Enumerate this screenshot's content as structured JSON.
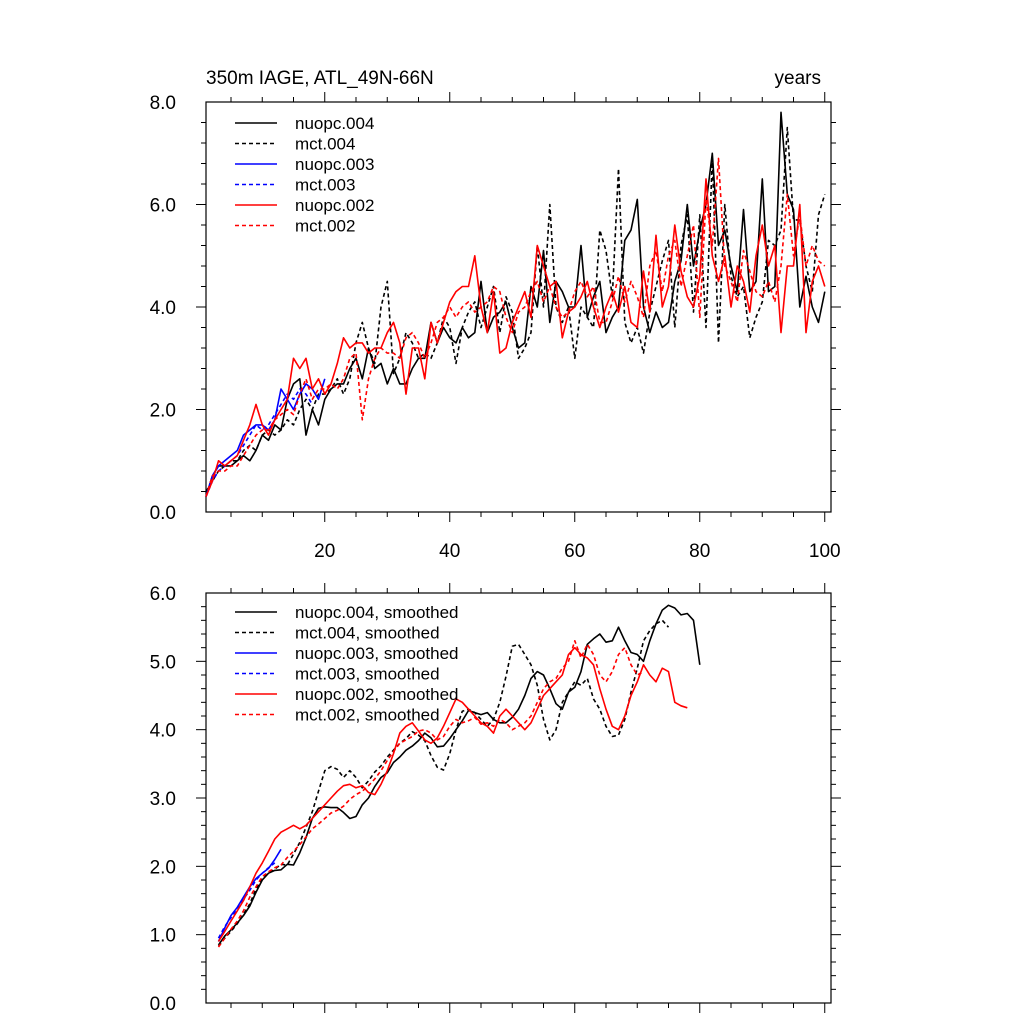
{
  "chart_data": [
    {
      "type": "line",
      "title": "350m IAGE, ATL_49N-66N",
      "right_title": "years",
      "xlim": [
        1,
        101
      ],
      "ylim": [
        0,
        8
      ],
      "x_tick_labels": [
        "20",
        "40",
        "60",
        "80",
        "100"
      ],
      "x_ticks": [
        20,
        40,
        60,
        80,
        100
      ],
      "y_tick_labels": [
        "0.0",
        "2.0",
        "4.0",
        "6.0",
        "8.0"
      ],
      "y_ticks": [
        0,
        2,
        4,
        6,
        8
      ],
      "legend_position": "top-left",
      "series": [
        {
          "name": "nuopc.004",
          "color": "#000000",
          "dash": "solid",
          "x_start": 1,
          "values": [
            0.3,
            0.7,
            0.9,
            0.9,
            0.9,
            1.0,
            1.1,
            1.0,
            1.2,
            1.5,
            1.4,
            1.7,
            1.6,
            2.2,
            2.5,
            2.6,
            1.5,
            2.0,
            1.7,
            2.2,
            2.4,
            2.5,
            2.5,
            2.8,
            3.0,
            2.6,
            3.2,
            2.8,
            2.9,
            2.5,
            2.8,
            2.5,
            2.5,
            2.8,
            3.0,
            3.0,
            3.7,
            3.3,
            3.6,
            3.4,
            3.3,
            3.6,
            3.4,
            3.5,
            4.5,
            3.5,
            3.8,
            3.9,
            4.1,
            3.6,
            3.2,
            3.3,
            4.4,
            4.0,
            5.1,
            3.7,
            4.5,
            4.3,
            4.0,
            4.0,
            5.2,
            3.8,
            4.2,
            4.5,
            3.5,
            3.8,
            4.0,
            5.3,
            5.5,
            6.1,
            4.0,
            3.5,
            3.9,
            3.6,
            3.7,
            4.5,
            4.9,
            6.0,
            4.8,
            5.5,
            6.0,
            7.0,
            5.2,
            5.5,
            4.8,
            4.3,
            5.9,
            4.3,
            4.5,
            6.5,
            4.3,
            4.4,
            7.8,
            6.2,
            5.9,
            4.0,
            4.6,
            4.0,
            3.7,
            4.3
          ]
        },
        {
          "name": "mct.004",
          "color": "#000000",
          "dash": "dashed",
          "x_start": 1,
          "values": [
            0.4,
            0.6,
            0.8,
            0.9,
            1.0,
            1.0,
            1.2,
            1.3,
            1.2,
            1.5,
            1.6,
            1.5,
            1.6,
            1.8,
            1.7,
            2.0,
            2.2,
            2.0,
            2.3,
            2.3,
            2.4,
            2.6,
            2.3,
            2.6,
            3.3,
            3.7,
            3.2,
            2.9,
            4.0,
            4.5,
            2.7,
            3.0,
            3.5,
            3.3,
            3.0,
            3.1,
            3.0,
            3.3,
            3.8,
            3.6,
            2.9,
            3.6,
            3.9,
            4.1,
            3.6,
            4.0,
            4.4,
            3.5,
            4.2,
            3.9,
            3.0,
            3.2,
            3.5,
            5.2,
            4.0,
            6.0,
            4.0,
            3.7,
            4.0,
            3.0,
            4.0,
            3.8,
            3.6,
            5.5,
            5.1,
            4.2,
            6.7,
            3.7,
            3.3,
            3.6,
            3.1,
            3.9,
            4.4,
            4.9,
            5.3,
            3.6,
            5.2,
            5.8,
            3.9,
            5.8,
            3.6,
            6.9,
            3.3,
            6.0,
            4.6,
            4.2,
            4.4,
            3.4,
            3.8,
            4.1,
            5.3,
            5.2,
            5.5,
            7.5,
            5.7,
            5.7,
            4.8,
            4.3,
            5.8,
            6.2
          ]
        },
        {
          "name": "nuopc.003",
          "color": "#0000ff",
          "dash": "solid",
          "x_start": 1,
          "values": [
            0.3,
            0.7,
            0.9,
            1.0,
            1.1,
            1.2,
            1.5,
            1.6,
            1.7,
            1.7,
            1.6,
            1.8,
            2.4,
            2.2,
            2.0,
            2.3,
            2.5,
            2.4,
            2.2,
            2.6
          ]
        },
        {
          "name": "mct.003",
          "color": "#0000ff",
          "dash": "dashed",
          "x_start": 1,
          "values": [
            0.3,
            0.6,
            0.8,
            0.9,
            1.0,
            1.1,
            1.3,
            1.5,
            1.7,
            1.6,
            1.7,
            1.9,
            2.1,
            2.3,
            2.2,
            2.4,
            2.3,
            2.1
          ]
        },
        {
          "name": "nuopc.002",
          "color": "#ff0000",
          "dash": "solid",
          "x_start": 1,
          "values": [
            0.3,
            0.6,
            1.0,
            0.9,
            1.0,
            1.1,
            1.4,
            1.7,
            2.1,
            1.7,
            1.5,
            1.8,
            2.0,
            2.2,
            3.0,
            2.8,
            3.0,
            2.4,
            2.6,
            2.3,
            2.5,
            2.9,
            3.4,
            3.2,
            3.3,
            3.3,
            3.1,
            3.2,
            3.2,
            3.5,
            3.7,
            3.3,
            2.3,
            3.2,
            3.2,
            2.6,
            3.7,
            3.3,
            3.7,
            4.1,
            4.3,
            4.4,
            4.4,
            5.0,
            4.0,
            3.5,
            4.3,
            3.1,
            3.2,
            3.7,
            4.0,
            4.3,
            3.8,
            5.2,
            4.8,
            4.4,
            4.5,
            3.4,
            3.9,
            4.0,
            4.2,
            4.5,
            4.0,
            3.6,
            4.0,
            4.3,
            3.9,
            4.4,
            3.7,
            3.6,
            4.7,
            3.9,
            5.4,
            4.0,
            4.4,
            5.6,
            4.7,
            4.2,
            4.0,
            4.6,
            6.5,
            5.0,
            4.5,
            5.0,
            4.0,
            4.8,
            4.5,
            3.9,
            5.0,
            5.6,
            4.8,
            5.2,
            3.5,
            4.8,
            4.8,
            6.0,
            3.5,
            4.5,
            4.8,
            4.4
          ]
        },
        {
          "name": "mct.002",
          "color": "#ff0000",
          "dash": "dashed",
          "x_start": 1,
          "values": [
            0.3,
            0.7,
            0.8,
            0.8,
            0.9,
            0.9,
            1.1,
            1.3,
            1.5,
            1.6,
            1.6,
            1.8,
            1.9,
            2.0,
            1.9,
            2.3,
            2.6,
            2.2,
            2.4,
            2.4,
            2.5,
            2.4,
            2.6,
            3.0,
            3.1,
            1.8,
            2.6,
            3.0,
            3.2,
            3.1,
            3.1,
            3.0,
            3.4,
            3.5,
            3.3,
            3.0,
            3.3,
            3.7,
            3.8,
            4.0,
            3.8,
            4.0,
            4.1,
            3.9,
            4.0,
            4.1,
            4.4,
            4.3,
            3.8,
            3.5,
            3.9,
            4.0,
            4.3,
            4.5,
            4.1,
            4.4,
            4.0,
            3.8,
            3.9,
            4.3,
            4.5,
            4.2,
            4.4,
            3.7,
            3.7,
            4.1,
            4.6,
            4.1,
            4.5,
            4.2,
            3.8,
            4.8,
            5.1,
            4.3,
            5.0,
            5.3,
            4.4,
            5.0,
            5.6,
            3.8,
            6.1,
            5.2,
            6.9,
            4.8,
            4.5,
            4.1,
            5.1,
            4.7,
            4.3,
            4.2,
            4.5,
            4.1,
            4.8,
            6.2,
            5.0,
            5.8,
            4.8,
            5.2,
            4.9,
            4.8
          ]
        }
      ]
    },
    {
      "type": "line",
      "title": "",
      "xlim": [
        1,
        101
      ],
      "ylim": [
        0,
        6
      ],
      "x_ticks": [
        20,
        40,
        60,
        80,
        100
      ],
      "x_tick_labels": [],
      "y_tick_labels": [
        "0.0",
        "1.0",
        "2.0",
        "3.0",
        "4.0",
        "5.0",
        "6.0"
      ],
      "y_ticks": [
        0,
        1,
        2,
        3,
        4,
        5,
        6
      ],
      "legend_position": "top-left",
      "series": [
        {
          "name": "nuopc.004, smoothed",
          "color": "#000000",
          "dash": "solid",
          "x_start": 3,
          "values": [
            0.85,
            0.98,
            1.07,
            1.17,
            1.28,
            1.42,
            1.62,
            1.8,
            1.9,
            1.94,
            1.95,
            2.03,
            2.02,
            2.2,
            2.42,
            2.7,
            2.85,
            2.87,
            2.86,
            2.86,
            2.79,
            2.7,
            2.73,
            2.9,
            3.0,
            3.17,
            3.3,
            3.37,
            3.52,
            3.6,
            3.7,
            3.76,
            3.84,
            3.95,
            3.88,
            3.75,
            3.76,
            3.87,
            4.0,
            4.13,
            4.28,
            4.25,
            4.22,
            4.25,
            4.15,
            4.1,
            4.1,
            4.18,
            4.3,
            4.5,
            4.75,
            4.85,
            4.8,
            4.6,
            4.38,
            4.3,
            4.55,
            4.62,
            4.85,
            5.25,
            5.33,
            5.4,
            5.28,
            5.3,
            5.5,
            5.3,
            5.13,
            5.1,
            5.0,
            5.3,
            5.55,
            5.75,
            5.82,
            5.78,
            5.68,
            5.7,
            5.6,
            4.95
          ]
        },
        {
          "name": "mct.004, smoothed",
          "color": "#000000",
          "dash": "dashed",
          "x_start": 3,
          "values": [
            0.83,
            0.95,
            1.05,
            1.16,
            1.3,
            1.45,
            1.67,
            1.82,
            1.9,
            1.96,
            2.03,
            2.02,
            2.18,
            2.35,
            2.57,
            2.8,
            3.1,
            3.4,
            3.46,
            3.42,
            3.3,
            3.4,
            3.3,
            3.15,
            3.25,
            3.38,
            3.47,
            3.6,
            3.7,
            3.8,
            3.87,
            3.97,
            3.92,
            3.84,
            3.62,
            3.45,
            3.41,
            3.65,
            4.0,
            4.27,
            4.3,
            4.25,
            4.15,
            4.05,
            4.15,
            4.4,
            4.78,
            5.22,
            5.25,
            5.1,
            4.95,
            4.65,
            4.15,
            3.85,
            4.0,
            4.4,
            4.55,
            4.7,
            4.65,
            4.75,
            4.45,
            4.3,
            4.05,
            3.9,
            3.92,
            4.15,
            4.55,
            4.9,
            5.3,
            5.45,
            5.55,
            5.6,
            5.5
          ]
        },
        {
          "name": "nuopc.003, smoothed",
          "color": "#0000ff",
          "dash": "solid",
          "x_start": 3,
          "values": [
            0.9,
            1.1,
            1.28,
            1.4,
            1.55,
            1.7,
            1.82,
            1.9,
            1.97,
            2.1,
            2.25
          ]
        },
        {
          "name": "mct.003, smoothed",
          "color": "#0000ff",
          "dash": "dashed",
          "x_start": 3,
          "values": [
            0.95,
            1.12,
            1.25,
            1.38,
            1.52,
            1.65,
            1.8,
            1.9,
            1.98,
            2.05
          ]
        },
        {
          "name": "nuopc.002, smoothed",
          "color": "#ff0000",
          "dash": "solid",
          "x_start": 3,
          "values": [
            0.9,
            1.05,
            1.2,
            1.35,
            1.5,
            1.7,
            1.9,
            2.05,
            2.22,
            2.4,
            2.5,
            2.55,
            2.6,
            2.55,
            2.6,
            2.7,
            2.8,
            2.9,
            3.0,
            3.1,
            3.18,
            3.2,
            3.15,
            3.18,
            3.08,
            3.05,
            3.2,
            3.4,
            3.65,
            3.95,
            4.05,
            4.1,
            3.98,
            3.85,
            3.8,
            3.88,
            4.05,
            4.25,
            4.45,
            4.4,
            4.3,
            4.2,
            4.1,
            4.05,
            3.95,
            4.2,
            4.3,
            4.2,
            4.1,
            4.0,
            4.1,
            4.3,
            4.5,
            4.6,
            4.7,
            4.8,
            5.1,
            5.2,
            5.1,
            5.05,
            4.95,
            4.6,
            4.3,
            4.05,
            4.0,
            4.2,
            4.5,
            4.7,
            4.95,
            4.8,
            4.7,
            4.9,
            4.85,
            4.4,
            4.35,
            4.32
          ]
        },
        {
          "name": "mct.002, smoothed",
          "color": "#ff0000",
          "dash": "dashed",
          "x_start": 3,
          "values": [
            0.82,
            0.95,
            1.08,
            1.2,
            1.35,
            1.55,
            1.7,
            1.85,
            1.92,
            1.98,
            2.02,
            2.13,
            2.22,
            2.32,
            2.43,
            2.55,
            2.62,
            2.7,
            2.78,
            2.82,
            2.88,
            2.98,
            3.05,
            3.1,
            3.18,
            3.28,
            3.4,
            3.55,
            3.68,
            3.8,
            3.85,
            3.9,
            3.98,
            4.0,
            3.95,
            3.85,
            3.9,
            4.05,
            4.15,
            4.1,
            4.13,
            4.18,
            4.08,
            4.1,
            4.05,
            4.15,
            4.1,
            4.0,
            4.05,
            4.1,
            4.2,
            4.4,
            4.6,
            4.7,
            4.75,
            4.9,
            5.0,
            5.3,
            5.05,
            5.25,
            5.1,
            4.8,
            4.7,
            4.85,
            5.1,
            5.2,
            4.95,
            4.8,
            4.85
          ]
        }
      ]
    }
  ]
}
